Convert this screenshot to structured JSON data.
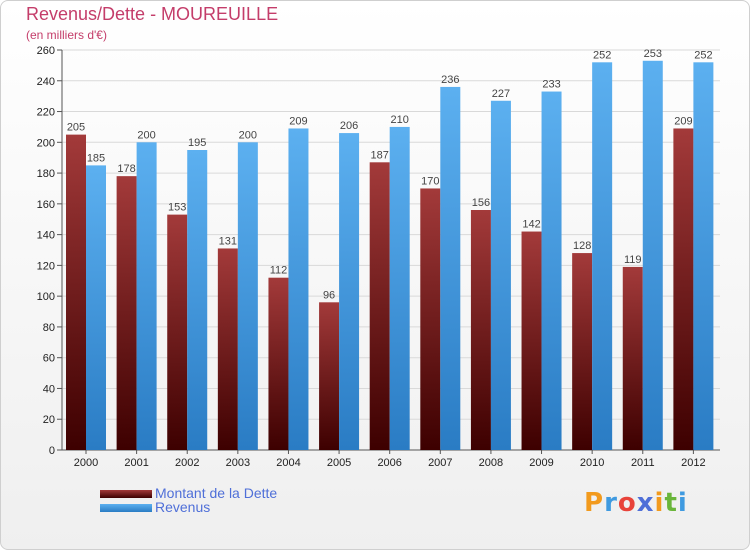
{
  "chart_data": {
    "type": "bar",
    "title": "Revenus/Dette - MOUREUILLE",
    "subtitle": "(en milliers d'€)",
    "categories": [
      "2000",
      "2001",
      "2002",
      "2003",
      "2004",
      "2005",
      "2006",
      "2007",
      "2008",
      "2009",
      "2010",
      "2011",
      "2012"
    ],
    "series": [
      {
        "name": "Montant de la Dette",
        "color": "#7a1a1a",
        "values": [
          205,
          178,
          153,
          131,
          112,
          96,
          187,
          170,
          156,
          142,
          128,
          119,
          209
        ]
      },
      {
        "name": "Revenus",
        "color": "#3f9ae0",
        "values": [
          185,
          200,
          195,
          200,
          209,
          206,
          210,
          236,
          227,
          233,
          252,
          253,
          252
        ]
      }
    ],
    "ylim": [
      0,
      260
    ],
    "yticks": [
      0,
      20,
      40,
      60,
      80,
      100,
      120,
      140,
      160,
      180,
      200,
      220,
      240,
      260
    ],
    "grid": true,
    "legend": "bottom-left"
  },
  "brand": {
    "text": "Proxiti",
    "colors": [
      "#f29a1d",
      "#3f9ae0",
      "#e8433a",
      "#4f6fd8",
      "#f29a1d",
      "#69b53a",
      "#3f9ae0"
    ]
  }
}
